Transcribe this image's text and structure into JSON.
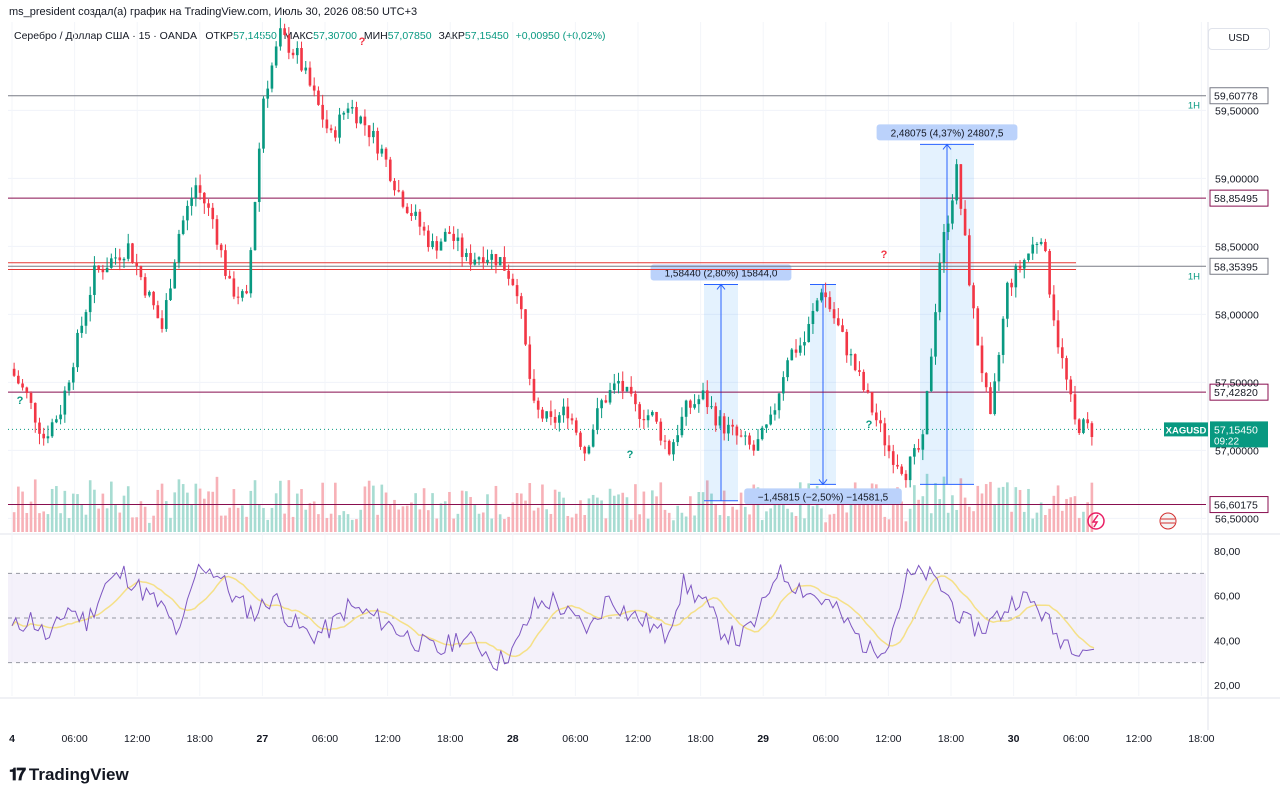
{
  "header": {
    "caption": "ms_president создал(а) график на TradingView.com, Июль 30, 2026 08:50 UTC+3",
    "symbol_line": "Серебро / Доллар США · 15 · OANDA",
    "ohlc": [
      {
        "k": "ОТКР",
        "v": "57,14550"
      },
      {
        "k": "МАКС",
        "v": "57,30700"
      },
      {
        "k": "МИН",
        "v": "57,07850"
      },
      {
        "k": "ЗАКР",
        "v": "57,15450"
      },
      {
        "k": "",
        "v": "+0,00950 (+0,02%)"
      }
    ],
    "currency_button": "USD"
  },
  "price_axis": {
    "ticks": [
      {
        "value": 59.5,
        "label": "59,50000"
      },
      {
        "value": 59.0,
        "label": "59,00000"
      },
      {
        "value": 58.5,
        "label": "58,50000"
      },
      {
        "value": 58.0,
        "label": "58,00000"
      },
      {
        "value": 57.5,
        "label": "57,50000"
      },
      {
        "value": 57.0,
        "label": "57,00000"
      },
      {
        "value": 56.5,
        "label": "56,50000"
      }
    ]
  },
  "levels": [
    {
      "value": 59.60778,
      "label": "59,60778",
      "color": "#787b86",
      "tag": "1H"
    },
    {
      "value": 58.85495,
      "label": "58,85495",
      "color": "#880e4f",
      "tag": ""
    },
    {
      "value": 58.35395,
      "label": "58,35395",
      "color": "#787b86",
      "tag": "1H"
    },
    {
      "value": 57.4282,
      "label": "57,42820",
      "color": "#880e4f",
      "tag": ""
    },
    {
      "value": 56.60175,
      "label": "56,60175",
      "color": "#880e4f",
      "tag": ""
    }
  ],
  "last_price": {
    "symbol": "XAGUSD",
    "label": "57,15450",
    "timer": "09:22",
    "value": 57.1545,
    "color": "#089981"
  },
  "measurements": [
    {
      "text": "1,58440 (2,80%) 15844,0",
      "from": 56.63,
      "to": 58.22
    },
    {
      "text": "−1,45815 (−2,50%) −14581,5",
      "from": 58.22,
      "to": 56.75
    },
    {
      "text": "2,48075 (4,37%) 24807,5",
      "from": 56.75,
      "to": 59.25
    }
  ],
  "question_marks": [
    "?",
    "?",
    "?",
    "?",
    "?"
  ],
  "time_axis": [
    "4",
    "06:00",
    "12:00",
    "18:00",
    "27",
    "06:00",
    "12:00",
    "18:00",
    "28",
    "06:00",
    "12:00",
    "18:00",
    "29",
    "06:00",
    "12:00",
    "18:00",
    "30",
    "06:00",
    "12:00",
    "18:00"
  ],
  "rsi_axis": [
    {
      "value": 80,
      "label": "80,00"
    },
    {
      "value": 60,
      "label": "60,00"
    },
    {
      "value": 40,
      "label": "40,00"
    },
    {
      "value": 20,
      "label": "20,00"
    }
  ],
  "rsi_bands": {
    "upper": 70,
    "middle": 50,
    "lower": 30
  },
  "colors": {
    "up": "#089981",
    "down": "#f23645",
    "vol_up": "#a7dcd2",
    "vol_down": "#f7b1b7",
    "rsi": "#7e57c2",
    "rsi_ma": "#f5e087",
    "band": "#ede7f6"
  },
  "footer": {
    "brand": "TradingView"
  },
  "chart_data": {
    "type": "candlestick",
    "instrument": "XAGUSD",
    "interval": "15",
    "price_range": [
      56.4,
      60.15
    ],
    "close_series_approx": [
      57.6,
      57.4,
      57.1,
      57.3,
      57.8,
      58.3,
      58.4,
      58.5,
      58.2,
      57.9,
      58.6,
      58.95,
      58.7,
      58.2,
      58.1,
      59.6,
      60.05,
      59.9,
      59.6,
      59.3,
      59.55,
      59.4,
      59.2,
      58.9,
      58.7,
      58.5,
      58.6,
      58.4,
      58.45,
      58.4,
      58.2,
      57.3,
      57.2,
      57.3,
      57.0,
      57.35,
      57.5,
      57.3,
      57.25,
      57.0,
      57.3,
      57.4,
      57.2,
      57.1,
      57.0,
      57.2,
      57.7,
      57.8,
      58.2,
      57.9,
      57.6,
      57.3,
      57.0,
      56.85,
      57.05,
      58.4,
      59.05,
      58.0,
      57.2,
      58.2,
      58.4,
      58.6,
      57.8,
      57.2,
      57.15
    ],
    "rsi_series_approx": [
      45,
      50,
      40,
      55,
      48,
      65,
      70,
      62,
      55,
      42,
      75,
      70,
      58,
      52,
      60,
      48,
      42,
      45,
      55,
      52,
      48,
      43,
      38,
      35,
      42,
      38,
      30,
      37,
      55,
      58,
      50,
      45,
      60,
      52,
      48,
      42,
      65,
      58,
      45,
      40,
      50,
      72,
      65,
      60,
      55,
      45,
      35,
      40,
      68,
      70,
      62,
      48,
      45,
      52,
      60,
      55,
      42,
      38,
      36
    ],
    "rsi_ylim": [
      15,
      85
    ]
  }
}
